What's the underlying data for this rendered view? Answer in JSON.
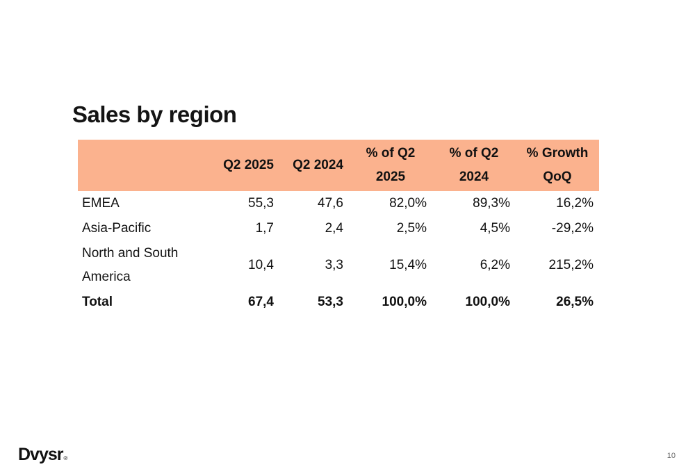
{
  "slide": {
    "title": "Sales by region",
    "page_number": "10"
  },
  "logo": {
    "text": "Dvysr",
    "registered_mark": "®"
  },
  "table": {
    "header_fill_color": "#fbb28e",
    "columns": [
      {
        "line1": "",
        "line2": ""
      },
      {
        "line1": "Q2 2025",
        "line2": ""
      },
      {
        "line1": "Q2 2024",
        "line2": ""
      },
      {
        "line1": "% of Q2",
        "line2": "2025"
      },
      {
        "line1": "% of Q2",
        "line2": "2024"
      },
      {
        "line1": "% Growth",
        "line2": "QoQ"
      }
    ],
    "rows": [
      {
        "region_line1": "EMEA",
        "region_line2": "",
        "q2_2025": "55,3",
        "q2_2024": "47,6",
        "pct_q2_2025": "82,0%",
        "pct_q2_2024": "89,3%",
        "growth_qoq": "16,2%"
      },
      {
        "region_line1": "Asia-Pacific",
        "region_line2": "",
        "q2_2025": "1,7",
        "q2_2024": "2,4",
        "pct_q2_2025": "2,5%",
        "pct_q2_2024": "4,5%",
        "growth_qoq": "-29,2%"
      },
      {
        "region_line1": "North and South",
        "region_line2": "America",
        "q2_2025": "10,4",
        "q2_2024": "3,3",
        "pct_q2_2025": "15,4%",
        "pct_q2_2024": "6,2%",
        "growth_qoq": "215,2%"
      },
      {
        "region_line1": "Total",
        "region_line2": "",
        "q2_2025": "67,4",
        "q2_2024": "53,3",
        "pct_q2_2025": "100,0%",
        "pct_q2_2024": "100,0%",
        "growth_qoq": "26,5%"
      }
    ]
  }
}
